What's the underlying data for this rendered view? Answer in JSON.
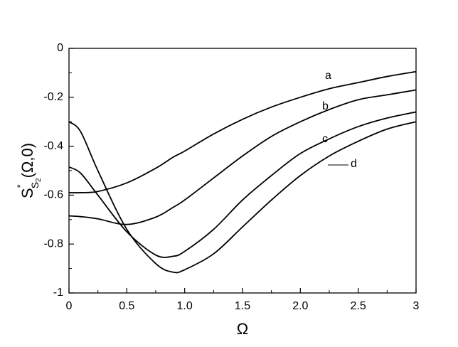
{
  "chart_data": {
    "type": "line",
    "x_label": "Ω",
    "y_label": {
      "base": "S",
      "sup": "*",
      "sub": "S",
      "subsub": "2",
      "rest": "(Ω,0)"
    },
    "x": [
      0,
      0.1,
      0.25,
      0.5,
      0.75,
      0.9,
      1,
      1.25,
      1.5,
      1.75,
      2,
      2.25,
      2.5,
      2.75,
      3
    ],
    "series": [
      {
        "name": "a",
        "color": "#000000",
        "values": [
          -0.59,
          -0.59,
          -0.585,
          -0.55,
          -0.49,
          -0.445,
          -0.42,
          -0.35,
          -0.29,
          -0.24,
          -0.2,
          -0.165,
          -0.14,
          -0.115,
          -0.095
        ]
      },
      {
        "name": "b",
        "color": "#000000",
        "values": [
          -0.685,
          -0.688,
          -0.697,
          -0.72,
          -0.69,
          -0.65,
          -0.62,
          -0.53,
          -0.44,
          -0.36,
          -0.3,
          -0.25,
          -0.21,
          -0.19,
          -0.17
        ]
      },
      {
        "name": "c",
        "color": "#000000",
        "values": [
          -0.485,
          -0.51,
          -0.6,
          -0.75,
          -0.845,
          -0.85,
          -0.83,
          -0.74,
          -0.62,
          -0.52,
          -0.43,
          -0.37,
          -0.32,
          -0.285,
          -0.26
        ]
      },
      {
        "name": "d",
        "color": "#000000",
        "values": [
          -0.3,
          -0.34,
          -0.5,
          -0.74,
          -0.88,
          -0.915,
          -0.905,
          -0.84,
          -0.73,
          -0.62,
          -0.52,
          -0.44,
          -0.38,
          -0.33,
          -0.3
        ]
      }
    ],
    "xlim": [
      0,
      3
    ],
    "xticks": [
      0,
      0.5,
      {
        "value": 1,
        "label": "1.0"
      },
      {
        "value": 1.5,
        "label": "1.5"
      },
      {
        "value": 2,
        "label": "2.0"
      },
      {
        "value": 2.5,
        "label": "2.5"
      },
      3
    ],
    "ylim": [
      -1,
      0
    ],
    "yticks": [
      -1,
      -0.8,
      -0.6,
      -0.4,
      -0.2,
      0
    ],
    "grid": false
  }
}
